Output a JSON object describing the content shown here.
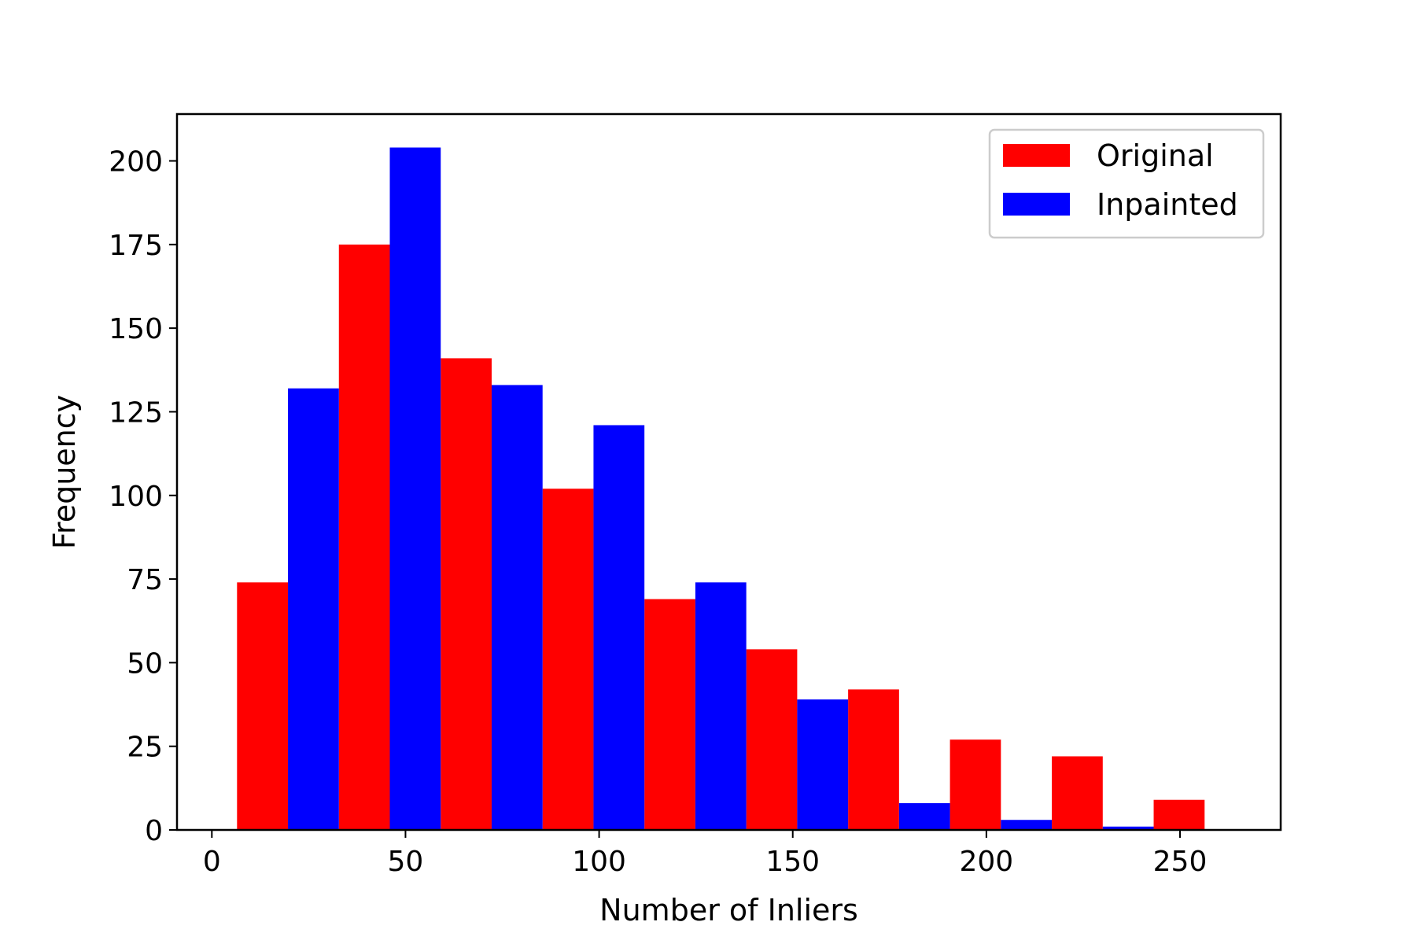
{
  "chart_data": {
    "type": "bar",
    "title": "",
    "xlabel": "Number of Inliers",
    "ylabel": "Frequency",
    "bin_edges": [
      6.5,
      32.8,
      59.1,
      85.4,
      111.7,
      138.0,
      164.3,
      190.6,
      216.9,
      243.2,
      269.5
    ],
    "xlim": [
      -9,
      276
    ],
    "ylim": [
      0,
      214
    ],
    "x_ticks": [
      0,
      50,
      100,
      150,
      200,
      250
    ],
    "y_ticks": [
      0,
      25,
      50,
      75,
      100,
      125,
      150,
      175,
      200
    ],
    "series": [
      {
        "name": "Original",
        "color": "#ff0000",
        "values": [
          74,
          175,
          141,
          102,
          69,
          54,
          42,
          27,
          22,
          9
        ]
      },
      {
        "name": "Inpainted",
        "color": "#0000ff",
        "values": [
          132,
          204,
          133,
          121,
          74,
          39,
          8,
          3,
          1,
          0
        ]
      }
    ],
    "legend_position": "upper-right",
    "grid": false
  }
}
